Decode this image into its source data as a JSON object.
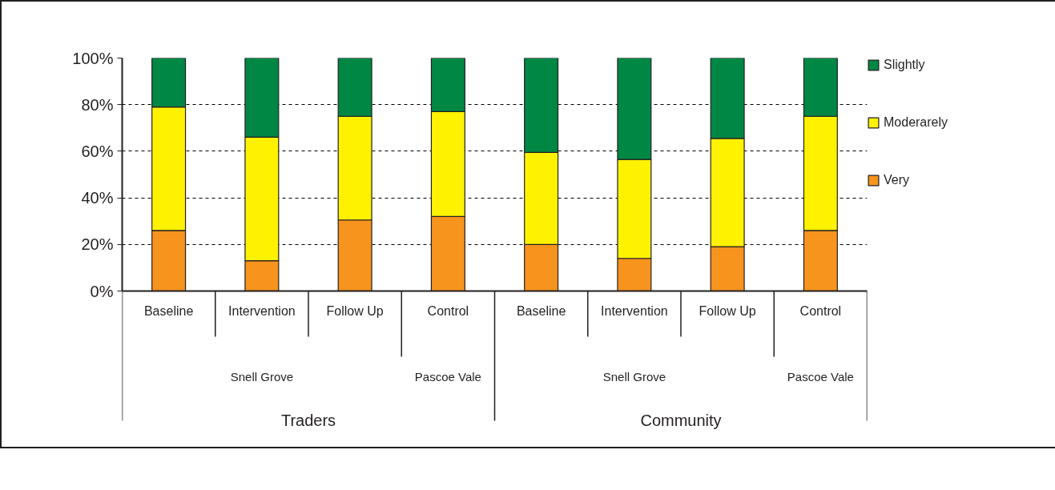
{
  "chart_data": {
    "type": "bar",
    "stacked": true,
    "categories": [
      "Baseline",
      "Intervention",
      "Follow Up",
      "Control",
      "Baseline",
      "Intervention",
      "Follow Up",
      "Control"
    ],
    "series": [
      {
        "name": "Very",
        "color": "#f7941d",
        "values": [
          26,
          13,
          30.5,
          32,
          20,
          14,
          19,
          26
        ]
      },
      {
        "name": "Moderarely",
        "color": "#fff200",
        "values": [
          53,
          53,
          44.5,
          45,
          39.5,
          42.5,
          46.5,
          49
        ]
      },
      {
        "name": "Slightly",
        "color": "#008744",
        "values": [
          21,
          34,
          25,
          23,
          40.5,
          43.5,
          34.5,
          25
        ]
      }
    ],
    "ylim": [
      0,
      100
    ],
    "yticks": [
      {
        "value": 0,
        "label": "0%"
      },
      {
        "value": 20,
        "label": "20%"
      },
      {
        "value": 40,
        "label": "40%"
      },
      {
        "value": 60,
        "label": "60%"
      },
      {
        "value": 80,
        "label": "80%"
      },
      {
        "value": 100,
        "label": "100%"
      }
    ],
    "grid": "y",
    "legend": "right",
    "annotations": [
      "Snell Grove",
      "Pascoe Vale",
      "Snell Grove",
      "Pascoe Vale",
      "Traders",
      "Community"
    ]
  }
}
